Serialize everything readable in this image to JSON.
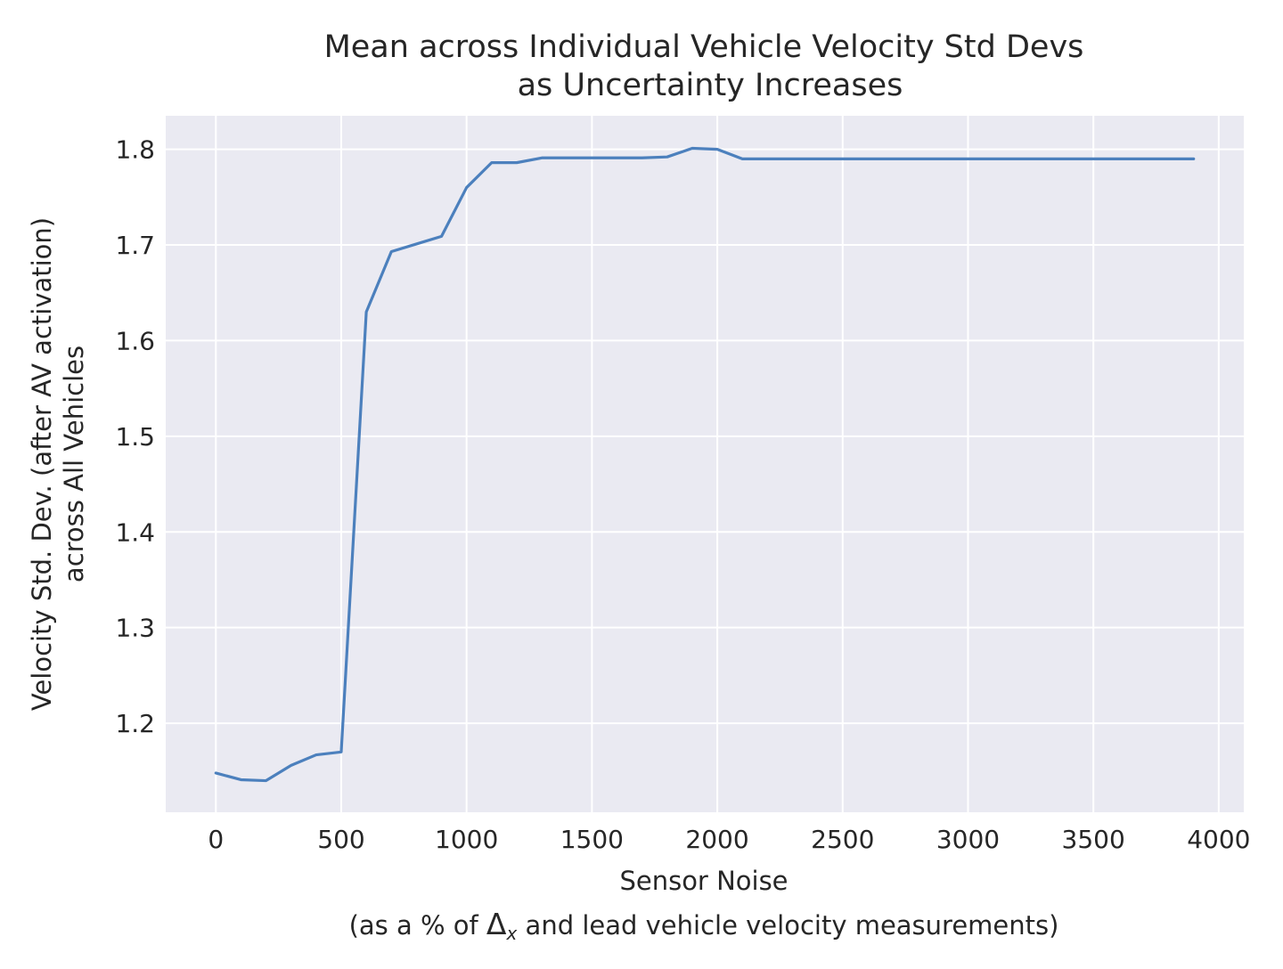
{
  "chart_data": {
    "type": "line",
    "title": [
      "Mean across Individual Vehicle Velocity Std Devs",
      "as Uncertainty Increases"
    ],
    "xlabel": "Sensor Noise",
    "xlabel_sub": {
      "before": "(as a % of ",
      "delta": "Δ",
      "delta_sub": "x",
      "after": " and lead vehicle velocity measurements)"
    },
    "ylabel": [
      "Velocity Std. Dev. (after AV activation)",
      "across All Vehicles"
    ],
    "xlim": [
      -200,
      4100
    ],
    "ylim": [
      1.107,
      1.835
    ],
    "xticks": [
      0,
      500,
      1000,
      1500,
      2000,
      2500,
      3000,
      3500,
      4000
    ],
    "xtick_labels": [
      "0",
      "500",
      "1000",
      "1500",
      "2000",
      "2500",
      "3000",
      "3500",
      "4000"
    ],
    "yticks": [
      1.2,
      1.3,
      1.4,
      1.5,
      1.6,
      1.7,
      1.8
    ],
    "ytick_labels": [
      "1.2",
      "1.3",
      "1.4",
      "1.5",
      "1.6",
      "1.7",
      "1.8"
    ],
    "grid": true,
    "background_color": "#EAEAF2",
    "line_color": "#4C80BD",
    "series": [
      {
        "x": [
          0,
          100,
          200,
          300,
          400,
          500,
          600,
          700,
          800,
          900,
          1000,
          1100,
          1200,
          1300,
          1400,
          1500,
          1600,
          1700,
          1800,
          1900,
          2000,
          2100,
          2200,
          2300,
          2400,
          2500,
          2600,
          2700,
          2800,
          2900,
          3000,
          3100,
          3200,
          3300,
          3400,
          3500,
          3600,
          3700,
          3800,
          3900
        ],
        "values": [
          1.148,
          1.141,
          1.14,
          1.156,
          1.167,
          1.17,
          1.63,
          1.693,
          1.701,
          1.709,
          1.76,
          1.786,
          1.786,
          1.791,
          1.791,
          1.791,
          1.791,
          1.791,
          1.792,
          1.801,
          1.8,
          1.79,
          1.79,
          1.79,
          1.79,
          1.79,
          1.79,
          1.79,
          1.79,
          1.79,
          1.79,
          1.79,
          1.79,
          1.79,
          1.79,
          1.79,
          1.79,
          1.79,
          1.79,
          1.79
        ]
      }
    ]
  }
}
